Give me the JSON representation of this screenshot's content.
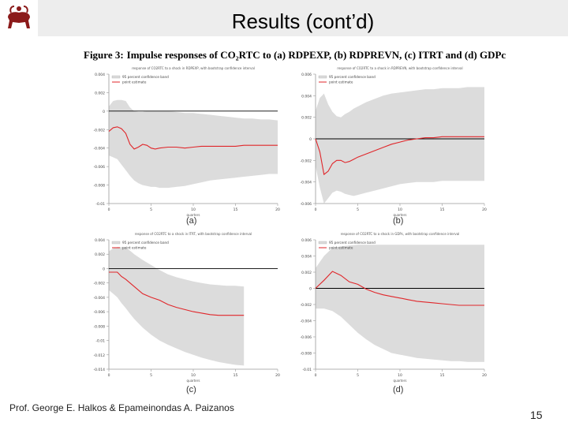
{
  "slide": {
    "title": "Results (cont’d)",
    "author": "Prof. George E. Halkos & Epameinondas A. Paizanos",
    "page_number": "15",
    "logo_icon": "bull-logo-icon"
  },
  "figure": {
    "label": "Figure 3:",
    "caption": "Impulse responses of CO₂RTC to (a) RDPEXP, (b) RDPREVN, (c) ITRT and (d) GDPc"
  },
  "colors": {
    "band": "#dcdcdc",
    "line": "#e0262a",
    "zero_line": "#000000",
    "axis": "#9a9a9a"
  },
  "chart_data": [
    {
      "type": "line",
      "panel": "(a)",
      "title": "response of CO2RTC to a shock in RDPEXP, with bootstrap confidence interval",
      "xlabel": "quarters",
      "xlim": [
        0,
        20
      ],
      "ylim": [
        -0.01,
        0.004
      ],
      "xticks": [
        "0",
        "5",
        "10",
        "15",
        "20"
      ],
      "yticks": [
        "0.004",
        "0.002",
        "0",
        "-0.002",
        "-0.004",
        "-0.006",
        "-0.008",
        "-0.01"
      ],
      "yticks_values": [
        0.004,
        0.002,
        0,
        -0.002,
        -0.004,
        -0.006,
        -0.008,
        -0.01
      ],
      "legend": [
        "95 percent confidence band",
        "point estimate"
      ],
      "x": [
        0,
        0.5,
        1,
        1.5,
        2,
        2.5,
        3,
        3.5,
        4,
        4.5,
        5,
        5.5,
        6,
        7,
        8,
        9,
        10,
        11,
        12,
        13,
        14,
        15,
        16,
        17,
        18,
        19,
        20
      ],
      "series": [
        {
          "name": "point estimate",
          "values": [
            -0.0022,
            -0.0018,
            -0.0017,
            -0.0019,
            -0.0024,
            -0.0036,
            -0.0041,
            -0.0039,
            -0.0036,
            -0.0037,
            -0.004,
            -0.0041,
            -0.004,
            -0.0039,
            -0.0039,
            -0.004,
            -0.0039,
            -0.0038,
            -0.0038,
            -0.0038,
            -0.0038,
            -0.0038,
            -0.0037,
            -0.0037,
            -0.0037,
            -0.0037,
            -0.0037
          ]
        },
        {
          "name": "band upper",
          "values": [
            0.0005,
            0.0011,
            0.0012,
            0.0012,
            0.0011,
            0.0004,
            0.0,
            -0.0001,
            -0.0001,
            0.0,
            0.0,
            0.0,
            0.0,
            0.0,
            -0.0001,
            -0.0002,
            -0.0002,
            -0.0003,
            -0.0004,
            -0.0005,
            -0.0006,
            -0.0007,
            -0.0008,
            -0.0008,
            -0.0009,
            -0.0009,
            -0.001
          ]
        },
        {
          "name": "band lower",
          "values": [
            -0.0048,
            -0.005,
            -0.0052,
            -0.0058,
            -0.0064,
            -0.007,
            -0.0075,
            -0.0078,
            -0.008,
            -0.0081,
            -0.0082,
            -0.0082,
            -0.0083,
            -0.0083,
            -0.0082,
            -0.0081,
            -0.0079,
            -0.0077,
            -0.0075,
            -0.0074,
            -0.0073,
            -0.0072,
            -0.0071,
            -0.007,
            -0.0069,
            -0.0068,
            -0.0068
          ]
        }
      ]
    },
    {
      "type": "line",
      "panel": "(b)",
      "title": "response of CO2RTC to a shock in RDPREVN, with bootstrap confidence interval",
      "xlabel": "quarters",
      "xlim": [
        0,
        20
      ],
      "ylim": [
        -0.006,
        0.006
      ],
      "xticks": [
        "0",
        "5",
        "10",
        "15",
        "20"
      ],
      "yticks": [
        "0.006",
        "0.004",
        "0.002",
        "0",
        "-0.002",
        "-0.004",
        "-0.006"
      ],
      "yticks_values": [
        0.006,
        0.004,
        0.002,
        0,
        -0.002,
        -0.004,
        -0.006
      ],
      "legend": [
        "95 percent confidence band",
        "point estimate"
      ],
      "x": [
        0,
        0.5,
        1,
        1.5,
        2,
        2.5,
        3,
        3.5,
        4,
        4.5,
        5,
        6,
        7,
        8,
        9,
        10,
        11,
        12,
        13,
        14,
        15,
        16,
        17,
        18,
        19,
        20
      ],
      "series": [
        {
          "name": "point estimate",
          "values": [
            0.0,
            -0.0012,
            -0.0033,
            -0.003,
            -0.0023,
            -0.002,
            -0.002,
            -0.0022,
            -0.0021,
            -0.0019,
            -0.0017,
            -0.0014,
            -0.0011,
            -0.0008,
            -0.0005,
            -0.0003,
            -0.0001,
            0.0,
            0.0001,
            0.0001,
            0.0002,
            0.0002,
            0.0002,
            0.0002,
            0.0002,
            0.0002
          ]
        },
        {
          "name": "band upper",
          "values": [
            0.0026,
            0.0038,
            0.0042,
            0.0032,
            0.0025,
            0.0021,
            0.002,
            0.0023,
            0.0025,
            0.0028,
            0.003,
            0.0034,
            0.0037,
            0.004,
            0.0042,
            0.0043,
            0.0044,
            0.0045,
            0.0046,
            0.0046,
            0.0047,
            0.0047,
            0.0047,
            0.0048,
            0.0048,
            0.0048
          ]
        },
        {
          "name": "band lower",
          "values": [
            -0.0025,
            -0.0045,
            -0.006,
            -0.0055,
            -0.005,
            -0.0048,
            -0.0049,
            -0.0051,
            -0.0052,
            -0.0053,
            -0.0052,
            -0.005,
            -0.0048,
            -0.0046,
            -0.0044,
            -0.0042,
            -0.0041,
            -0.004,
            -0.004,
            -0.004,
            -0.0039,
            -0.0039,
            -0.0039,
            -0.0039,
            -0.0039,
            -0.0039
          ]
        }
      ]
    },
    {
      "type": "line",
      "panel": "(c)",
      "title": "response of CO2RTC to a shock in ITRT, with bootstrap confidence interval",
      "xlabel": "quarters",
      "xlim": [
        0,
        20
      ],
      "ylim": [
        -0.014,
        0.004
      ],
      "xticks": [
        "0",
        "5",
        "10",
        "15",
        "20"
      ],
      "yticks": [
        "0.004",
        "0.002",
        "0",
        "-0.002",
        "-0.004",
        "-0.006",
        "-0.008",
        "-0.01",
        "-0.012",
        "-0.014"
      ],
      "yticks_values": [
        0.004,
        0.002,
        0,
        -0.002,
        -0.004,
        -0.006,
        -0.008,
        -0.01,
        -0.012,
        -0.014
      ],
      "legend": [
        "95 percent confidence band",
        "point estimate"
      ],
      "x": [
        0,
        0.5,
        1,
        1.5,
        2,
        2.5,
        3,
        4,
        5,
        6,
        7,
        8,
        9,
        10,
        11,
        12,
        13,
        14,
        15,
        16
      ],
      "series": [
        {
          "name": "point estimate",
          "values": [
            -0.0005,
            -0.0005,
            -0.0005,
            -0.0011,
            -0.0015,
            -0.002,
            -0.0025,
            -0.0035,
            -0.004,
            -0.0044,
            -0.005,
            -0.0054,
            -0.0057,
            -0.006,
            -0.0062,
            -0.0064,
            -0.0065,
            -0.0065,
            -0.0065,
            -0.0065
          ]
        },
        {
          "name": "band upper",
          "values": [
            0.0024,
            0.0028,
            0.003,
            0.003,
            0.0029,
            0.0025,
            0.002,
            0.0012,
            0.0005,
            -0.0002,
            -0.0008,
            -0.0012,
            -0.0015,
            -0.0018,
            -0.002,
            -0.0022,
            -0.0023,
            -0.0024,
            -0.0024,
            -0.0025
          ]
        },
        {
          "name": "band lower",
          "values": [
            -0.003,
            -0.0035,
            -0.004,
            -0.0048,
            -0.0055,
            -0.0063,
            -0.007,
            -0.0082,
            -0.0092,
            -0.01,
            -0.0106,
            -0.0111,
            -0.0116,
            -0.012,
            -0.0124,
            -0.0127,
            -0.013,
            -0.0132,
            -0.0134,
            -0.0135
          ]
        }
      ]
    },
    {
      "type": "line",
      "panel": "(d)",
      "title": "response of CO2RTC to a shock in GDPc, with bootstrap confidence interval",
      "xlabel": "quarters",
      "xlim": [
        0,
        20
      ],
      "ylim": [
        -0.01,
        0.006
      ],
      "xticks": [
        "0",
        "5",
        "10",
        "15",
        "20"
      ],
      "yticks": [
        "0.006",
        "0.004",
        "0.002",
        "0",
        "-0.002",
        "-0.004",
        "-0.006",
        "-0.008",
        "-0.01"
      ],
      "yticks_values": [
        0.006,
        0.004,
        0.002,
        0,
        -0.002,
        -0.004,
        -0.006,
        -0.008,
        -0.01
      ],
      "legend": [
        "95 percent confidence band",
        "point estimate"
      ],
      "x": [
        0,
        1,
        2,
        3,
        4,
        5,
        6,
        7,
        8,
        9,
        10,
        11,
        12,
        13,
        14,
        15,
        16,
        17,
        18,
        19,
        20
      ],
      "series": [
        {
          "name": "point estimate",
          "values": [
            0.0,
            0.001,
            0.0021,
            0.0016,
            0.0008,
            0.0005,
            -0.0001,
            -0.0005,
            -0.0008,
            -0.001,
            -0.0012,
            -0.0014,
            -0.0016,
            -0.0017,
            -0.0018,
            -0.0019,
            -0.002,
            -0.0021,
            -0.0021,
            -0.0021,
            -0.0021
          ]
        },
        {
          "name": "band upper",
          "values": [
            0.0025,
            0.004,
            0.005,
            0.0052,
            0.0053,
            0.0054,
            0.0054,
            0.0054,
            0.0054,
            0.0054,
            0.0054,
            0.0054,
            0.0054,
            0.0054,
            0.0054,
            0.0054,
            0.0054,
            0.0054,
            0.0054,
            0.0054,
            0.0054
          ]
        },
        {
          "name": "band lower",
          "values": [
            -0.0025,
            -0.0025,
            -0.0028,
            -0.0035,
            -0.0045,
            -0.0055,
            -0.0063,
            -0.007,
            -0.0075,
            -0.008,
            -0.0082,
            -0.0084,
            -0.0086,
            -0.0087,
            -0.0088,
            -0.0089,
            -0.009,
            -0.009,
            -0.0091,
            -0.0091,
            -0.0091
          ]
        }
      ]
    }
  ]
}
